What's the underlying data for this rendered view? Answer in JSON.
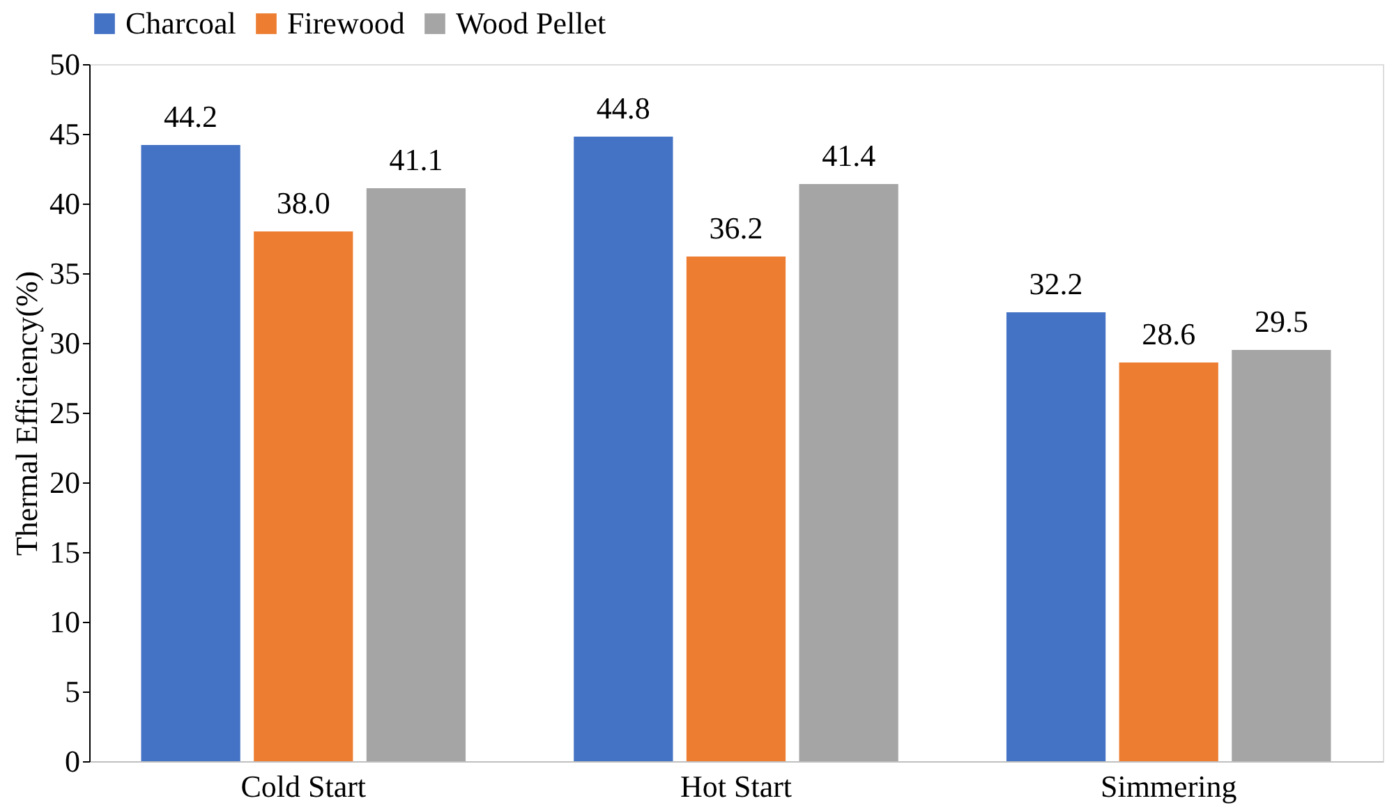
{
  "chart_data": {
    "type": "bar",
    "ylabel": "Thermal Efficiency(%)",
    "categories": [
      "Cold Start",
      "Hot Start",
      "Simmering"
    ],
    "series": [
      {
        "name": "Charcoal",
        "color": "#4472c4",
        "values": [
          44.2,
          44.8,
          32.2
        ],
        "value_labels": [
          "44.2",
          "44.8",
          "32.2"
        ]
      },
      {
        "name": "Firewood",
        "color": "#ed7d31",
        "values": [
          38.0,
          36.2,
          28.6
        ],
        "value_labels": [
          "38.0",
          "36.2",
          "28.6"
        ]
      },
      {
        "name": "Wood Pellet",
        "color": "#a5a5a5",
        "values": [
          41.1,
          41.4,
          29.5
        ],
        "value_labels": [
          "41.1",
          "41.4",
          "29.5"
        ]
      }
    ],
    "ylim": [
      0,
      50
    ],
    "yticks": [
      0,
      5,
      10,
      15,
      20,
      25,
      30,
      35,
      40,
      45,
      50
    ],
    "grid": false,
    "legend": "top"
  }
}
